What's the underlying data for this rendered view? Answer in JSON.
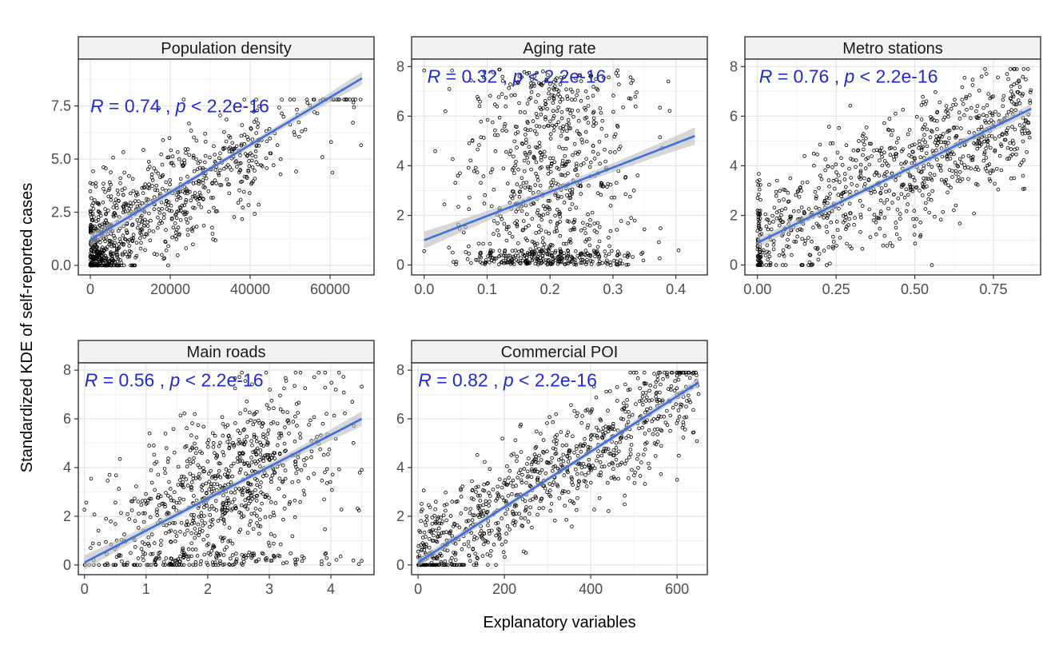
{
  "chart_data": {
    "type": "scatter",
    "xlabel": "Explanatory variables",
    "ylabel": "Standardized KDE of self-reported cases",
    "grid": true,
    "colors": {
      "points": "#000000",
      "fit_line": "#3d6fe0",
      "band": "#bdbdbd",
      "annotation": "#1f2bd1",
      "strip_bg": "#f2f2f2"
    },
    "panels": [
      {
        "title": "Population density",
        "xlim": [
          -3000,
          71000
        ],
        "ylim": [
          -0.45,
          9.7
        ],
        "x_ticks": [
          0,
          20000,
          40000,
          60000
        ],
        "x_tick_labels": [
          "0",
          "20000",
          "40000",
          "60000"
        ],
        "y_ticks": [
          0,
          2.5,
          5,
          7.5
        ],
        "y_tick_labels": [
          "0.0",
          "2.5",
          "5.0",
          "7.5"
        ],
        "fit": {
          "x0": 0,
          "y0": 1.2,
          "x1": 68000,
          "y1": 8.8,
          "band": [
            0.12,
            0.3
          ]
        },
        "annotation": {
          "r_label": "R",
          "r_value": "= 0.74 ,",
          "p_label": "p",
          "p_value": "< 2.2e-16",
          "x": 0,
          "y": 7.5
        },
        "points_summary": {
          "n": 900,
          "x_max": 68000,
          "y_max": 7.8
        }
      },
      {
        "title": "Aging rate",
        "xlim": [
          -0.02,
          0.45
        ],
        "ylim": [
          -0.4,
          8.3
        ],
        "x_ticks": [
          0,
          0.1,
          0.2,
          0.3,
          0.4
        ],
        "x_tick_labels": [
          "0.0",
          "0.1",
          "0.2",
          "0.3",
          "0.4"
        ],
        "y_ticks": [
          0,
          2,
          4,
          6,
          8
        ],
        "y_tick_labels": [
          "0",
          "2",
          "4",
          "6",
          "8"
        ],
        "fit": {
          "x0": 0,
          "y0": 1.0,
          "x1": 0.43,
          "y1": 5.2,
          "band": [
            0.15,
            0.35
          ]
        },
        "annotation": {
          "r_label": "R",
          "r_value": "= 0.32 ,",
          "p_label": "p",
          "p_value": "< 2.2e-16",
          "x": 0.005,
          "y": 7.6
        },
        "points_summary": {
          "n": 900,
          "x_max": 0.43,
          "y_max": 7.9
        }
      },
      {
        "title": "Metro stations",
        "xlim": [
          -0.04,
          0.9
        ],
        "ylim": [
          -0.4,
          8.3
        ],
        "x_ticks": [
          0,
          0.25,
          0.5,
          0.75
        ],
        "x_tick_labels": [
          "0.00",
          "0.25",
          "0.50",
          "0.75"
        ],
        "y_ticks": [
          0,
          2,
          4,
          6,
          8
        ],
        "y_tick_labels": [
          "0",
          "2",
          "4",
          "6",
          "8"
        ],
        "fit": {
          "x0": 0,
          "y0": 0.9,
          "x1": 0.87,
          "y1": 6.3,
          "band": [
            0.12,
            0.2
          ]
        },
        "annotation": {
          "r_label": "R",
          "r_value": "= 0.76 ,",
          "p_label": "p",
          "p_value": "< 2.2e-16",
          "x": 0.005,
          "y": 7.6
        },
        "points_summary": {
          "n": 900,
          "x_max": 0.87,
          "y_max": 7.9
        }
      },
      {
        "title": "Main roads",
        "xlim": [
          -0.1,
          4.7
        ],
        "ylim": [
          -0.4,
          8.3
        ],
        "x_ticks": [
          0,
          1,
          2,
          3,
          4
        ],
        "x_tick_labels": [
          "0",
          "1",
          "2",
          "3",
          "4"
        ],
        "y_ticks": [
          0,
          2,
          4,
          6,
          8
        ],
        "y_tick_labels": [
          "0",
          "2",
          "4",
          "6",
          "8"
        ],
        "fit": {
          "x0": 0,
          "y0": 0.1,
          "x1": 4.5,
          "y1": 6.0,
          "band": [
            0.12,
            0.3
          ]
        },
        "annotation": {
          "r_label": "R",
          "r_value": "= 0.56 ,",
          "p_label": "p",
          "p_value": "< 2.2e-16",
          "x": 0.0,
          "y": 7.6
        },
        "points_summary": {
          "n": 900,
          "x_max": 4.5,
          "y_max": 7.9
        }
      },
      {
        "title": "Commercial POI",
        "xlim": [
          -15,
          670
        ],
        "ylim": [
          -0.4,
          8.3
        ],
        "x_ticks": [
          0,
          200,
          400,
          600
        ],
        "x_tick_labels": [
          "0",
          "200",
          "400",
          "600"
        ],
        "y_ticks": [
          0,
          2,
          4,
          6,
          8
        ],
        "y_tick_labels": [
          "0",
          "2",
          "4",
          "6",
          "8"
        ],
        "fit": {
          "x0": 0,
          "y0": 0.1,
          "x1": 650,
          "y1": 7.5,
          "band": [
            0.1,
            0.18
          ]
        },
        "annotation": {
          "r_label": "R",
          "r_value": "= 0.82 ,",
          "p_label": "p",
          "p_value": "< 2.2e-16",
          "x": 0.0,
          "y": 7.6
        },
        "points_summary": {
          "n": 900,
          "x_max": 650,
          "y_max": 7.9
        }
      }
    ]
  }
}
